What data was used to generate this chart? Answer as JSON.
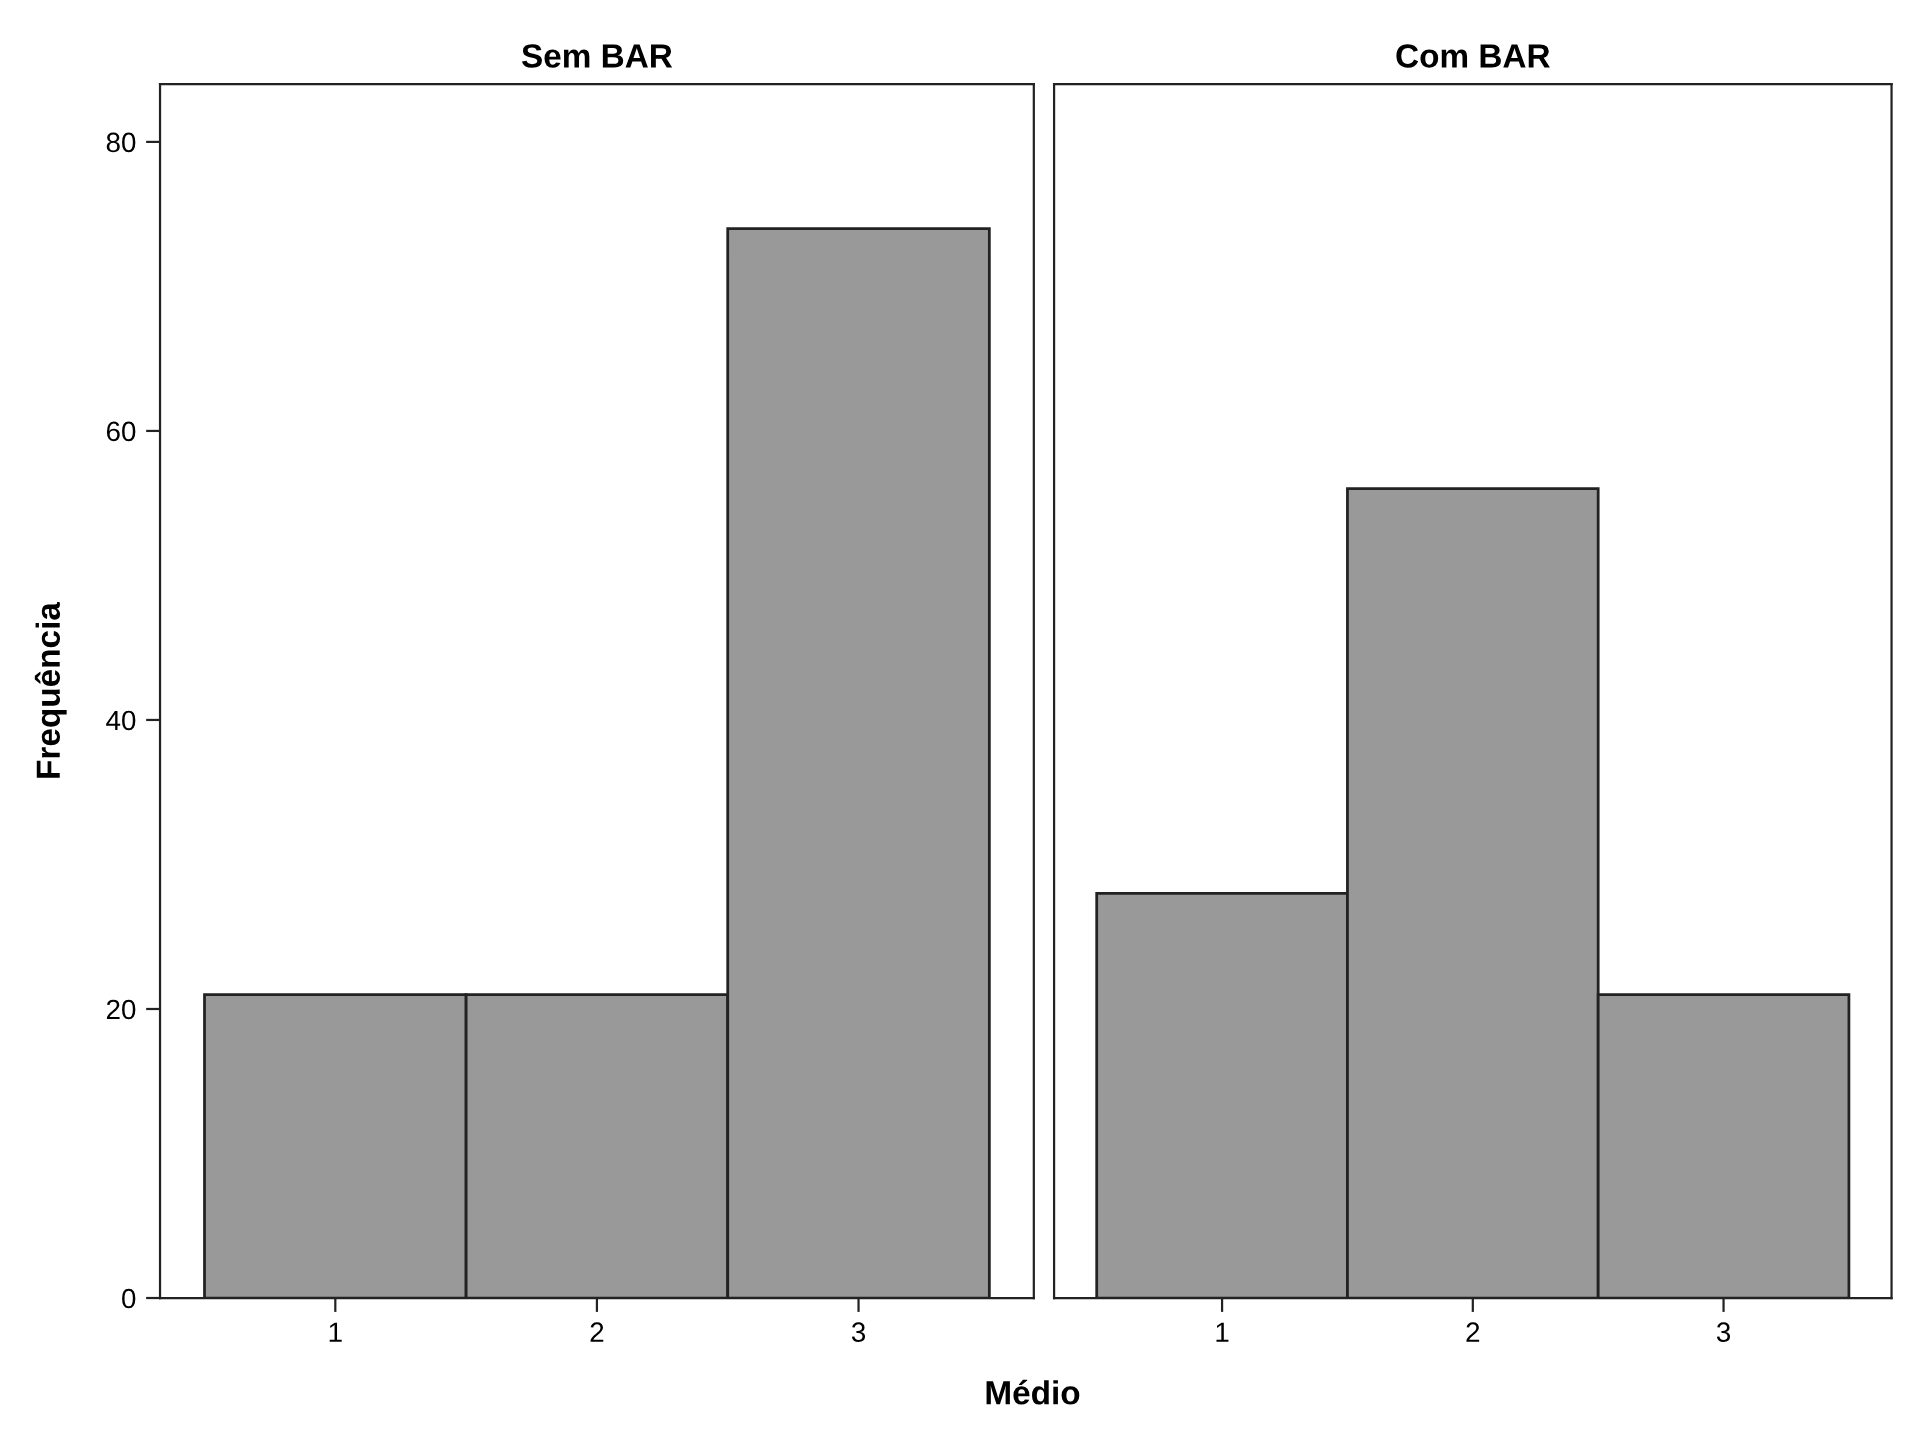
{
  "chart_data": [
    {
      "type": "bar",
      "title": "Sem BAR",
      "xlabel": "Médio",
      "ylabel": "Frequência",
      "categories": [
        "1",
        "2",
        "3"
      ],
      "values": [
        21,
        21,
        74
      ],
      "color": "#999999",
      "ylim": [
        0,
        84
      ],
      "yticks": [
        0,
        20,
        40,
        60,
        80
      ],
      "grid": false
    },
    {
      "type": "bar",
      "title": "Com BAR",
      "categories": [
        "1",
        "2",
        "3"
      ],
      "values": [
        28,
        56,
        21
      ],
      "color": "#999999",
      "ylim": [
        0,
        84
      ],
      "yticks": [
        0,
        20,
        40,
        60,
        80
      ],
      "grid": false,
      "tick_labels": "x"
    }
  ]
}
